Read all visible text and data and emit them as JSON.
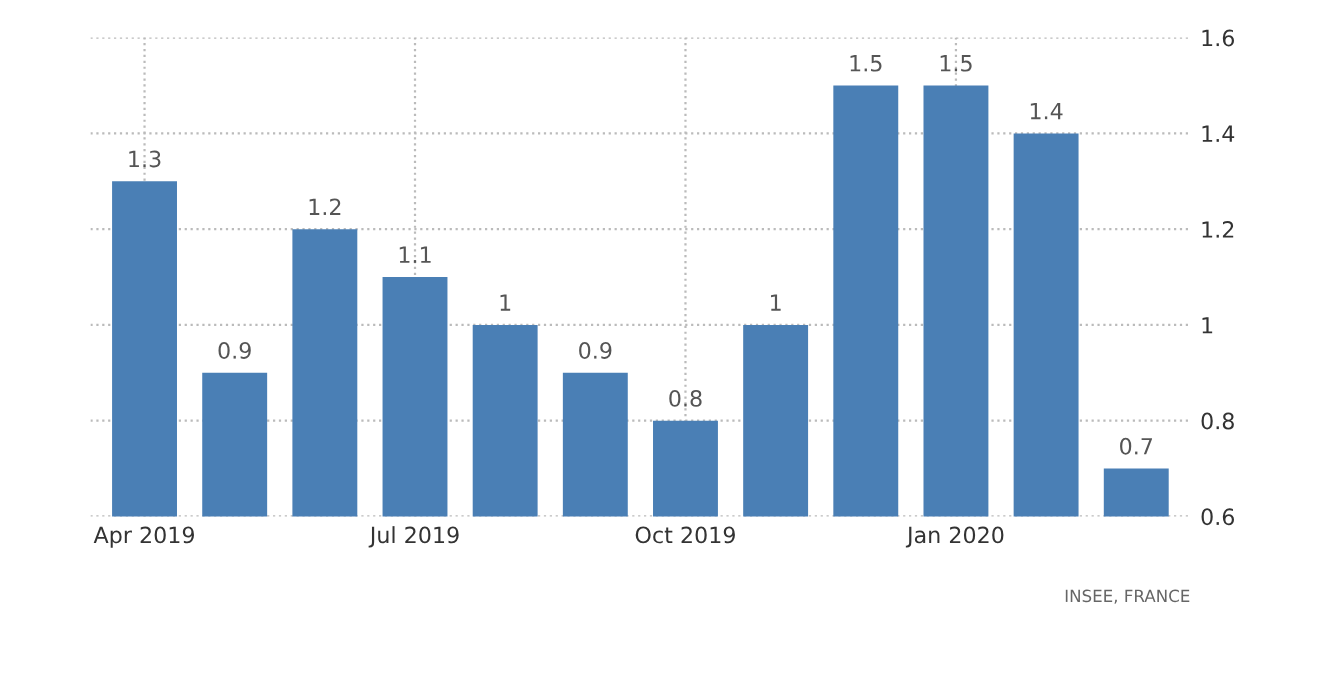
{
  "chart_data": {
    "type": "bar",
    "categories": [
      "Apr 2019",
      null,
      null,
      "Jul 2019",
      null,
      null,
      "Oct 2019",
      null,
      null,
      "Jan 2020",
      null,
      null
    ],
    "values": [
      1.3,
      0.9,
      1.2,
      1.1,
      1,
      0.9,
      0.8,
      1,
      1.5,
      1.5,
      1.4,
      0.7
    ],
    "color": "#4a7fb5",
    "ylim": [
      0.6,
      1.6
    ],
    "yticks": [
      0.6,
      0.8,
      1,
      1.2,
      1.4,
      1.6
    ],
    "grid": true,
    "data_labels": true,
    "annotations": [
      "INSEE, FRANCE"
    ]
  }
}
